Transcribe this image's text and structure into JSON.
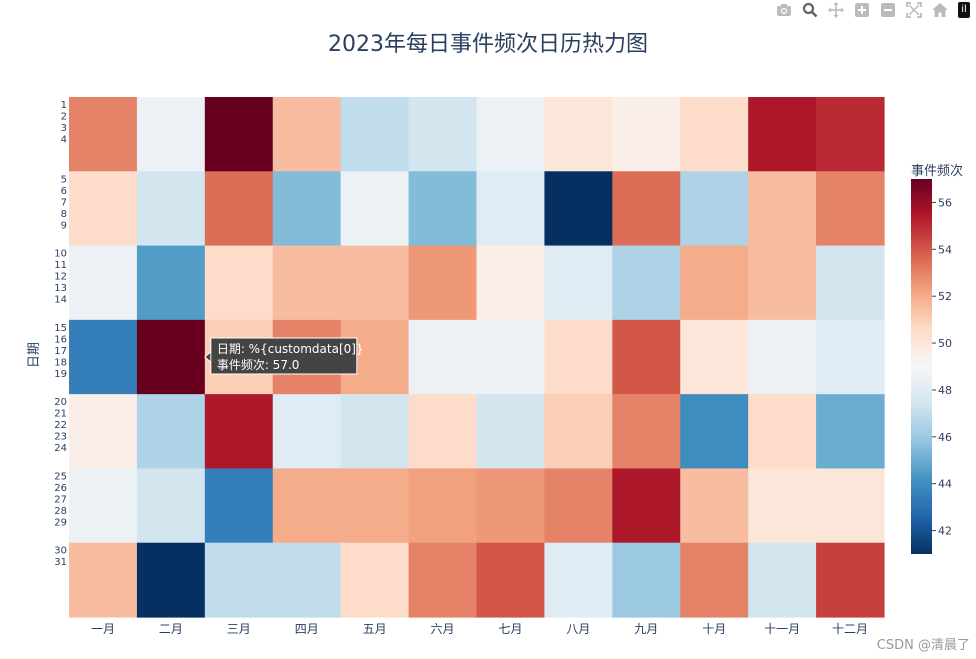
{
  "chart_data": {
    "type": "heatmap",
    "title": "2023年每日事件频次日历热力图",
    "xlabel": "",
    "ylabel": "日期",
    "x_categories": [
      "一月",
      "二月",
      "三月",
      "四月",
      "五月",
      "六月",
      "七月",
      "八月",
      "九月",
      "十月",
      "十一月",
      "十二月"
    ],
    "y_tick_labels": [
      "1",
      "2",
      "3",
      "4",
      "5",
      "6",
      "7",
      "8",
      "9",
      "10",
      "11",
      "12",
      "13",
      "14",
      "15",
      "16",
      "17",
      "18",
      "19",
      "20",
      "21",
      "22",
      "23",
      "24",
      "25",
      "26",
      "27",
      "28",
      "29",
      "30",
      "31"
    ],
    "row_groups": [
      {
        "days": [
          "1",
          "2",
          "3",
          "4"
        ],
        "values": [
          53,
          48.5,
          57,
          51.5,
          47,
          47.5,
          48.5,
          50,
          49.5,
          50.5,
          55.5,
          55
        ]
      },
      {
        "days": [
          "5",
          "6",
          "7",
          "8",
          "9"
        ],
        "values": [
          50.5,
          47.5,
          53.5,
          45.5,
          48.5,
          45.5,
          48,
          41,
          53.5,
          46.5,
          51.5,
          53
        ]
      },
      {
        "days": [
          "10",
          "11",
          "12",
          "13",
          "14"
        ],
        "values": [
          48.5,
          44.5,
          50.5,
          51.5,
          51.5,
          52.5,
          49.5,
          48,
          46.5,
          52,
          51.5,
          47.5
        ]
      },
      {
        "days": [
          "15",
          "16",
          "17",
          "18",
          "19"
        ],
        "values": [
          43.5,
          57,
          51,
          53,
          52,
          48.5,
          48.5,
          50.5,
          54,
          50,
          48.5,
          48
        ]
      },
      {
        "days": [
          "20",
          "21",
          "22",
          "23",
          "24"
        ],
        "values": [
          49.5,
          46.5,
          55.5,
          48,
          47.5,
          50.5,
          47.5,
          51,
          53,
          44,
          50.5,
          45
        ]
      },
      {
        "days": [
          "25",
          "26",
          "27",
          "28",
          "29"
        ],
        "values": [
          48.5,
          47.5,
          43.5,
          52,
          52,
          52.3,
          52.5,
          53,
          55.5,
          51.5,
          50,
          50
        ]
      },
      {
        "days": [
          "30",
          "31"
        ],
        "values": [
          51.5,
          41,
          47,
          47,
          50.5,
          53,
          54,
          48,
          46,
          53,
          47.5,
          54.5
        ]
      }
    ],
    "zmin": 41,
    "zmax": 57,
    "colorscale": "RdBu_r",
    "colorbar": {
      "title": "事件频次",
      "ticks": [
        "42",
        "44",
        "46",
        "48",
        "50",
        "52",
        "54",
        "56"
      ],
      "tick_values": [
        42,
        44,
        46,
        48,
        50,
        52,
        54,
        56
      ]
    },
    "hover": {
      "lines": [
        "日期: %{customdata[0]}",
        "事件频次: 57.0"
      ],
      "row": 3,
      "col": 1
    }
  },
  "colorscale_stops": [
    "#053061",
    "#2166ac",
    "#4393c3",
    "#92c5de",
    "#d1e5f0",
    "#f7f7f7",
    "#fddbc7",
    "#f4a582",
    "#d6604d",
    "#b2182b",
    "#67001f"
  ],
  "toolbar": {
    "icons": [
      "camera-icon",
      "zoom-icon",
      "pan-icon",
      "zoom-in-icon",
      "zoom-out-icon",
      "autoscale-icon",
      "home-icon"
    ]
  },
  "logo_text": "il",
  "watermark": "CSDN @清晨了"
}
